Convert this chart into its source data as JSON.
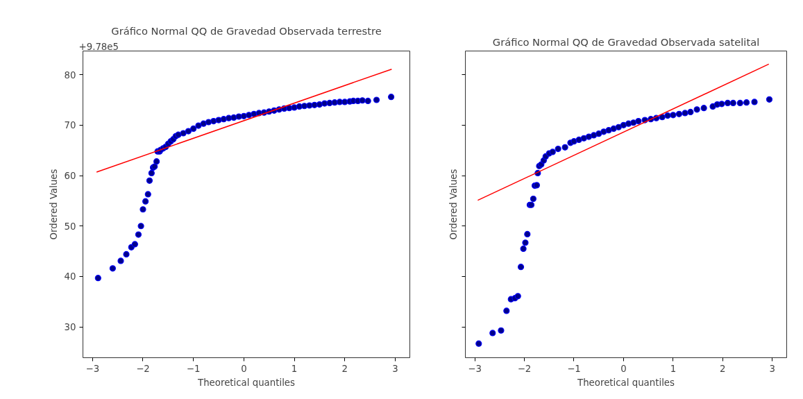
{
  "chart_data": [
    {
      "type": "scatter",
      "title": "Gráfico Normal QQ de Gravedad Observada terrestre",
      "xlabel": "Theoretical quantiles",
      "ylabel": "Ordered Values",
      "annotations": [
        "+9.78e5"
      ],
      "xlim": [
        -3.19,
        3.29
      ],
      "ylim": [
        23.9,
        84.7
      ],
      "xticks": [
        {
          "value": -3,
          "label": "−3"
        },
        {
          "value": -2,
          "label": "−2"
        },
        {
          "value": -1,
          "label": "−1"
        },
        0,
        1,
        2,
        3
      ],
      "yticks": [
        30,
        40,
        50,
        60,
        70,
        80
      ],
      "grid": false,
      "series": [
        {
          "color": "#00008b",
          "marker": "circle",
          "x": [
            -2.89,
            -2.6,
            -2.44,
            -2.33,
            -2.23,
            -2.16,
            -2.09,
            -2.04,
            -2.0,
            -1.95,
            -1.9,
            -1.87,
            -1.83,
            -1.8,
            -1.77,
            -1.73,
            -1.71,
            -1.67,
            -1.65,
            -1.6,
            -1.55,
            -1.5,
            -1.45,
            -1.4,
            -1.35,
            -1.3,
            -1.2,
            -1.1,
            -1.0,
            -0.9,
            -0.8,
            -0.7,
            -0.6,
            -0.5,
            -0.4,
            -0.3,
            -0.2,
            -0.1,
            0.0,
            0.1,
            0.2,
            0.3,
            0.4,
            0.5,
            0.6,
            0.7,
            0.8,
            0.9,
            1.0,
            1.1,
            1.2,
            1.3,
            1.4,
            1.5,
            1.6,
            1.7,
            1.8,
            1.9,
            2.0,
            2.1,
            2.17,
            2.26,
            2.35,
            2.46,
            2.63,
            2.92
          ],
          "values": [
            39.7,
            41.6,
            43.1,
            44.4,
            45.8,
            46.4,
            48.3,
            50.0,
            53.3,
            54.9,
            56.3,
            59.0,
            60.5,
            61.6,
            61.8,
            62.8,
            64.8,
            64.8,
            65.1,
            65.4,
            65.7,
            66.3,
            66.8,
            67.2,
            67.8,
            68.1,
            68.4,
            68.8,
            69.3,
            69.9,
            70.3,
            70.6,
            70.8,
            71.0,
            71.2,
            71.4,
            71.5,
            71.7,
            71.8,
            72.0,
            72.2,
            72.4,
            72.5,
            72.7,
            72.9,
            73.1,
            73.3,
            73.4,
            73.5,
            73.7,
            73.8,
            73.9,
            74.0,
            74.1,
            74.3,
            74.4,
            74.5,
            74.6,
            74.6,
            74.7,
            74.8,
            74.8,
            74.9,
            74.8,
            75.0,
            75.6
          ]
        },
        {
          "type": "line",
          "color": "#ff0000",
          "x": [
            -2.92,
            2.93
          ],
          "values": [
            60.7,
            81.1
          ]
        }
      ]
    },
    {
      "type": "scatter",
      "title": "Gráfico Normal QQ de Gravedad Observada satelital",
      "xlabel": "Theoretical quantiles",
      "ylabel": "Ordered Values",
      "tick_labels": "x",
      "xlim": [
        -3.19,
        3.29
      ],
      "ylim": [
        23.9,
        84.7
      ],
      "xticks": [
        {
          "value": -3,
          "label": "−3"
        },
        {
          "value": -2,
          "label": "−2"
        },
        {
          "value": -1,
          "label": "−1"
        },
        0,
        1,
        2,
        3
      ],
      "yticks": [
        30,
        40,
        50,
        60,
        70,
        80
      ],
      "grid": false,
      "series": [
        {
          "color": "#00008b",
          "marker": "circle",
          "x": [
            -2.92,
            -2.64,
            -2.47,
            -2.36,
            -2.27,
            -2.19,
            -2.13,
            -2.07,
            -2.02,
            -1.98,
            -1.94,
            -1.89,
            -1.86,
            -1.82,
            -1.79,
            -1.75,
            -1.73,
            -1.7,
            -1.66,
            -1.61,
            -1.57,
            -1.5,
            -1.43,
            -1.32,
            -1.18,
            -1.07,
            -1.0,
            -0.9,
            -0.8,
            -0.7,
            -0.6,
            -0.5,
            -0.4,
            -0.3,
            -0.2,
            -0.1,
            0.0,
            0.1,
            0.2,
            0.3,
            0.43,
            0.55,
            0.66,
            0.78,
            0.89,
            1.0,
            1.12,
            1.24,
            1.35,
            1.48,
            1.62,
            1.8,
            1.89,
            1.98,
            2.1,
            2.21,
            2.35,
            2.48,
            2.64,
            2.94
          ],
          "values": [
            26.7,
            28.8,
            29.3,
            33.2,
            35.5,
            35.7,
            36.1,
            41.9,
            45.5,
            46.7,
            48.4,
            54.2,
            54.2,
            55.4,
            58.0,
            58.1,
            60.5,
            61.9,
            62.2,
            63.0,
            63.8,
            64.4,
            64.7,
            65.3,
            65.6,
            66.5,
            66.8,
            67.1,
            67.4,
            67.7,
            68.0,
            68.3,
            68.7,
            69.0,
            69.3,
            69.6,
            70.0,
            70.3,
            70.5,
            70.8,
            71.0,
            71.2,
            71.4,
            71.6,
            71.9,
            72.0,
            72.2,
            72.4,
            72.6,
            73.1,
            73.4,
            73.7,
            74.1,
            74.2,
            74.4,
            74.4,
            74.4,
            74.5,
            74.6,
            75.1
          ]
        },
        {
          "type": "line",
          "color": "#ff0000",
          "x": [
            -2.94,
            2.93
          ],
          "values": [
            55.1,
            82.1
          ]
        }
      ]
    }
  ]
}
